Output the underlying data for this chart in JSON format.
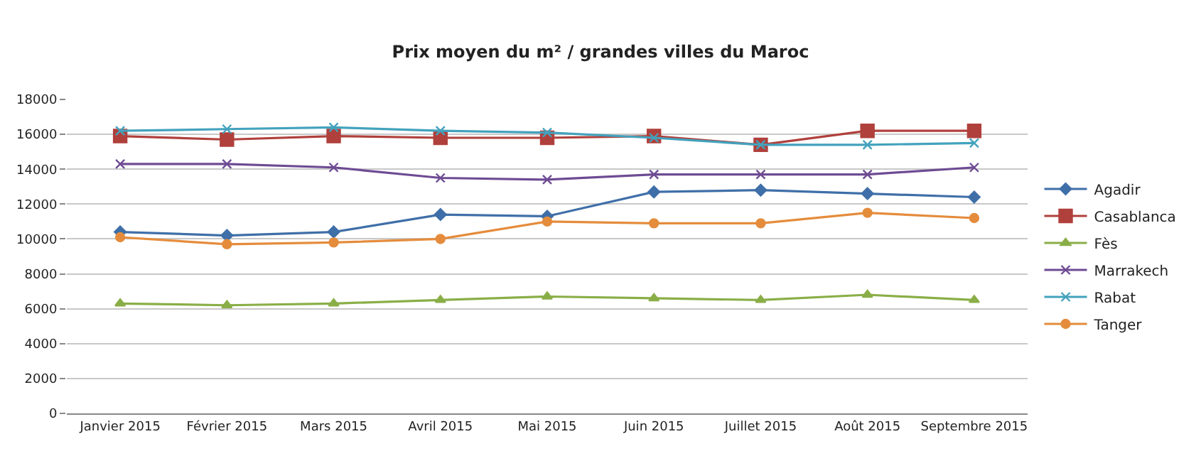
{
  "chart_data": {
    "type": "line",
    "title": "Prix moyen du m² / grandes villes du Maroc",
    "categories": [
      "Janvier 2015",
      "Février 2015",
      "Mars 2015",
      "Avril 2015",
      "Mai 2015",
      "Juin 2015",
      "Juillet 2015",
      "Août 2015",
      "Septembre 2015"
    ],
    "series": [
      {
        "name": "Agadir",
        "color": "#3f6fa8",
        "marker": "diamond",
        "values": [
          10400,
          10200,
          10400,
          11400,
          11300,
          12700,
          12800,
          12600,
          12400
        ]
      },
      {
        "name": "Casablanca",
        "color": "#b0403c",
        "marker": "square",
        "values": [
          15900,
          15700,
          15900,
          15800,
          15800,
          15900,
          15400,
          16200,
          16200
        ]
      },
      {
        "name": "Fès",
        "color": "#8aae47",
        "marker": "triangle",
        "values": [
          6300,
          6200,
          6300,
          6500,
          6700,
          6600,
          6500,
          6800,
          6500
        ]
      },
      {
        "name": "Marrakech",
        "color": "#6e4b93",
        "marker": "cross",
        "values": [
          14300,
          14300,
          14100,
          13500,
          13400,
          13700,
          13700,
          13700,
          14100
        ]
      },
      {
        "name": "Rabat",
        "color": "#43a2bd",
        "marker": "cross",
        "values": [
          16200,
          16300,
          16400,
          16200,
          16100,
          15800,
          15400,
          15400,
          15500
        ]
      },
      {
        "name": "Tanger",
        "color": "#e48c3c",
        "marker": "circle",
        "values": [
          10100,
          9700,
          9800,
          10000,
          11000,
          10900,
          10900,
          11500,
          11200
        ]
      }
    ],
    "ylim": [
      0,
      18000
    ],
    "yticks": [
      0,
      2000,
      4000,
      6000,
      8000,
      10000,
      12000,
      14000,
      16000,
      18000
    ],
    "grid": "y",
    "legend": "right",
    "line_style": "solid"
  }
}
